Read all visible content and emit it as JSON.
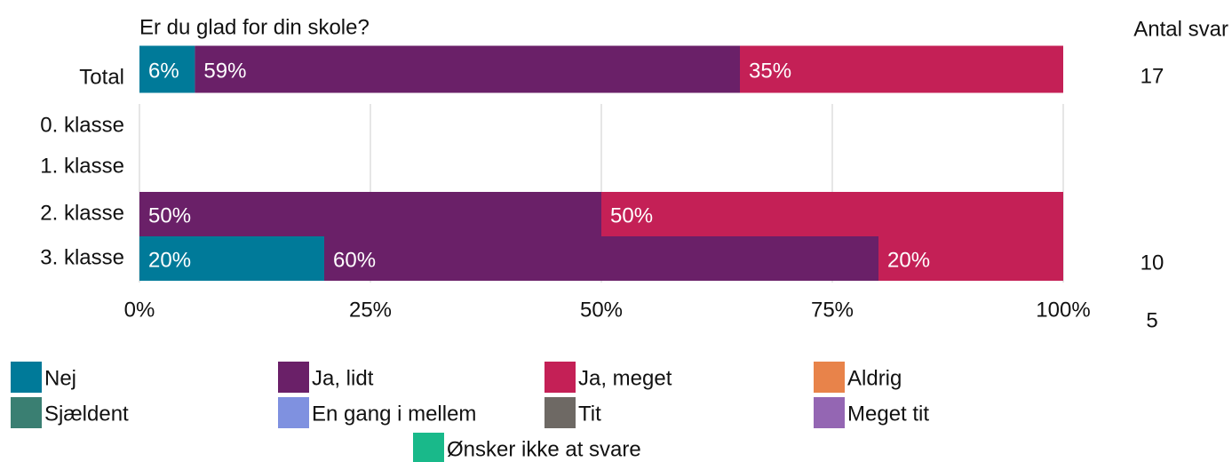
{
  "chart_data": {
    "type": "stacked-bar-horizontal",
    "title": "Er du glad for din skole?",
    "categories": [
      "Total",
      "0. klasse",
      "1. klasse",
      "2. klasse",
      "3. klasse"
    ],
    "series": [
      {
        "name": "Nej",
        "color": "#007a99",
        "values": [
          6,
          null,
          null,
          null,
          20
        ],
        "value_labels": [
          "6%",
          null,
          null,
          null,
          "20%"
        ]
      },
      {
        "name": "Ja, lidt",
        "color": "#6a2068",
        "values": [
          59,
          null,
          null,
          50,
          60
        ],
        "value_labels": [
          "59%",
          null,
          null,
          "50%",
          "60%"
        ]
      },
      {
        "name": "Ja, meget",
        "color": "#c42056",
        "values": [
          35,
          null,
          null,
          50,
          20
        ],
        "value_labels": [
          "35%",
          null,
          null,
          "50%",
          "20%"
        ]
      },
      {
        "name": "Aldrig",
        "color": "#e8834a",
        "values": [
          null,
          null,
          null,
          null,
          null
        ]
      },
      {
        "name": "Sjældent",
        "color": "#3a7f72",
        "values": [
          null,
          null,
          null,
          null,
          null
        ]
      },
      {
        "name": "En gang i mellem",
        "color": "#7f91e0",
        "values": [
          null,
          null,
          null,
          null,
          null
        ]
      },
      {
        "name": "Tit",
        "color": "#6e6964",
        "values": [
          null,
          null,
          null,
          null,
          null
        ]
      },
      {
        "name": "Meget tit",
        "color": "#9466b3",
        "values": [
          null,
          null,
          null,
          null,
          null
        ]
      },
      {
        "name": "Ønsker ikke at svare",
        "color": "#19b98a",
        "values": [
          null,
          null,
          null,
          null,
          null
        ]
      }
    ],
    "counts_title": "Antal svar",
    "counts": [
      17,
      null,
      null,
      10,
      5
    ],
    "xlim": [
      0,
      100
    ],
    "xticks": [
      {
        "value": 0,
        "label": "0%"
      },
      {
        "value": 25,
        "label": "25%"
      },
      {
        "value": 50,
        "label": "50%"
      },
      {
        "value": 75,
        "label": "75%"
      },
      {
        "value": 100,
        "label": "100%"
      }
    ],
    "grid": true
  }
}
